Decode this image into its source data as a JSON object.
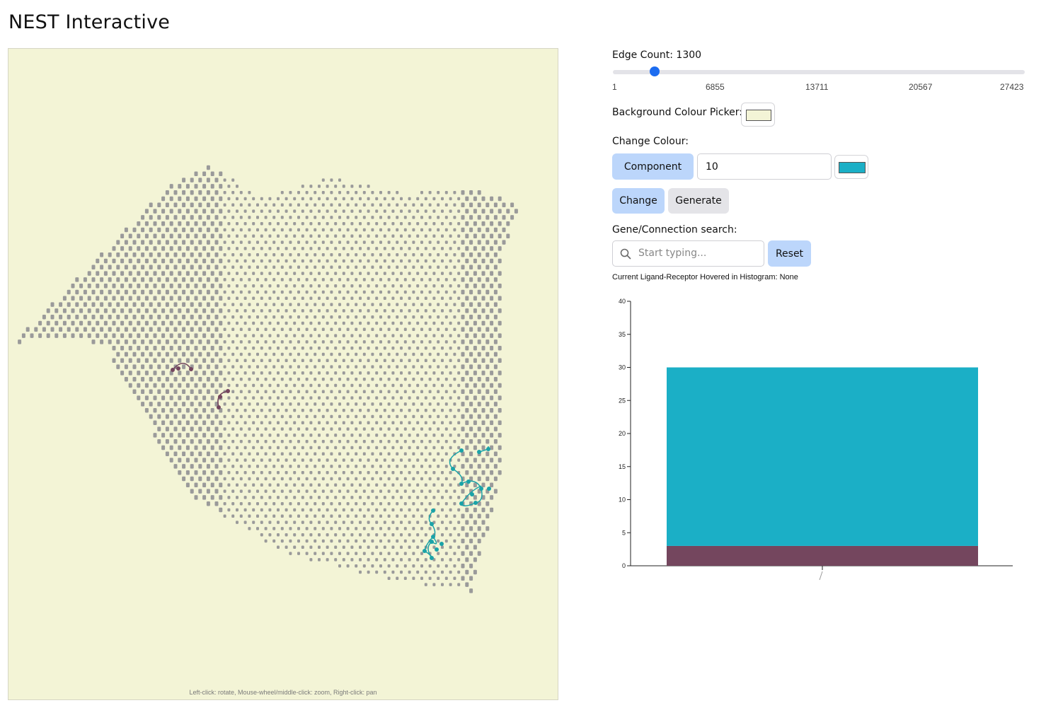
{
  "app": {
    "title": "NEST Interactive"
  },
  "viewport": {
    "background": "#f3f4d6",
    "spot_color": "#9a9a9a",
    "hint": "Left-click: rotate, Mouse-wheel/middle-click: zoom, Right-click: pan",
    "components": [
      {
        "name": "component-purple",
        "color": "#74465e"
      },
      {
        "name": "component-teal",
        "color": "#1aa3a8"
      }
    ]
  },
  "controls": {
    "edge_count": {
      "label": "Edge Count: 1300",
      "value": 1300,
      "min": 1,
      "max": 27423,
      "ticks": [
        "1",
        "6855",
        "13711",
        "20567",
        "27423"
      ]
    },
    "background_picker": {
      "label": "Background Colour Picker:",
      "color": "#f3f4d6"
    },
    "change_colour": {
      "label": "Change Colour:",
      "mode_button": "Component",
      "input_value": "10",
      "color": "#1bafc6",
      "change_button": "Change",
      "generate_button": "Generate"
    },
    "search": {
      "label": "Gene/Connection search:",
      "placeholder": "Start typing...",
      "reset_button": "Reset"
    },
    "hover_status": "Current Ligand-Receptor Hovered in Histogram: None"
  },
  "chart_data": {
    "type": "bar",
    "stacked": true,
    "categories": [
      ""
    ],
    "series": [
      {
        "values": [
          3
        ],
        "color": "#74465e"
      },
      {
        "values": [
          27
        ],
        "color": "#1bafc6"
      }
    ],
    "ylim": [
      0,
      40
    ],
    "yticks": [
      0,
      5,
      10,
      15,
      20,
      25,
      30,
      35,
      40
    ],
    "grid": false
  }
}
